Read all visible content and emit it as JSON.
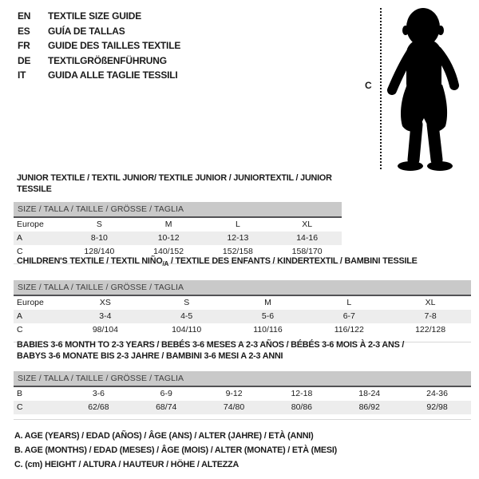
{
  "header": {
    "languages": [
      {
        "code": "EN",
        "title": "TEXTILE SIZE GUIDE"
      },
      {
        "code": "ES",
        "title": "GUÍA DE TALLAS"
      },
      {
        "code": "FR",
        "title": "GUIDE DES TAILLES TEXTILE"
      },
      {
        "code": "DE",
        "title": "TEXTILGRÖßENFÜHRUNG"
      },
      {
        "code": "IT",
        "title": "GUIDA ALLE TAGLIE TESSILI"
      }
    ]
  },
  "figure": {
    "height_label": "C",
    "illustration": "baby-silhouette"
  },
  "size_header": "SIZE / TALLA / TAILLE / GRÖSSE / TAGLIA",
  "colors": {
    "size_bar_bg": "#c9c9c9",
    "size_bar_rule": "#525255",
    "shaded_row_bg": "#ededed",
    "text": "#1a1a1a"
  },
  "tables": [
    {
      "id": "junior",
      "title_lines": [
        [
          {
            "t": "JUNIOR TEXTILE / TEXTIL JUNIOR/ TEXTILE JUNIOR / JUNIORTEXTIL / JUNIOR TESSILE"
          }
        ]
      ],
      "rows": [
        {
          "label": "Europe",
          "values": [
            "S",
            "M",
            "L",
            "XL"
          ],
          "shaded": false
        },
        {
          "label": "A",
          "values": [
            "8-10",
            "10-12",
            "12-13",
            "14-16"
          ],
          "shaded": true
        },
        {
          "label": "C",
          "values": [
            "128/140",
            "140/152",
            "152/158",
            "158/170"
          ],
          "shaded": false
        }
      ]
    },
    {
      "id": "childrens",
      "title_lines": [
        [
          {
            "t": "CHILDREN'S TEXTILE / TEXTIL NIÑO"
          },
          {
            "t": "/A",
            "sub": true
          },
          {
            "t": " / TEXTILE DES ENFANTS / KINDERTEXTIL / BAMBINI TESSILE"
          }
        ]
      ],
      "rows": [
        {
          "label": "Europe",
          "values": [
            "XS",
            "S",
            "M",
            "L",
            "XL"
          ],
          "shaded": false
        },
        {
          "label": "A",
          "values": [
            "3-4",
            "4-5",
            "5-6",
            "6-7",
            "7-8"
          ],
          "shaded": true
        },
        {
          "label": "C",
          "values": [
            "98/104",
            "104/110",
            "110/116",
            "116/122",
            "122/128"
          ],
          "shaded": false
        }
      ]
    },
    {
      "id": "babies",
      "title_lines": [
        [
          {
            "t": "BABIES 3-6 MONTH TO 2-3 YEARS / BEBÉS 3-6 MESES A 2-3 AÑOS / BÉBÉS 3-6 MOIS À 2-3 ANS /"
          }
        ],
        [
          {
            "t": "BABYS 3-6 MONATE BIS 2-3 JAHRE / BAMBINI 3-6 MESI A 2-3 ANNI"
          }
        ]
      ],
      "rows": [
        {
          "label": "B",
          "values": [
            "3-6",
            "6-9",
            "9-12",
            "12-18",
            "18-24",
            "24-36"
          ],
          "shaded": false
        },
        {
          "label": "C",
          "values": [
            "62/68",
            "68/74",
            "74/80",
            "80/86",
            "86/92",
            "92/98"
          ],
          "shaded": true
        }
      ]
    }
  ],
  "footnotes": [
    "A. AGE (YEARS) / EDAD (AÑOS) / ÂGE (ANS) / ALTER (JAHRE) / ETÀ (ANNI)",
    "B. AGE (MONTHS) / EDAD (MESES) / ÂGE (MOIS) / ALTER (MONATE) / ETÀ (MESI)",
    "C. (cm) HEIGHT / ALTURA / HAUTEUR / HÖHE / ALTEZZA"
  ]
}
